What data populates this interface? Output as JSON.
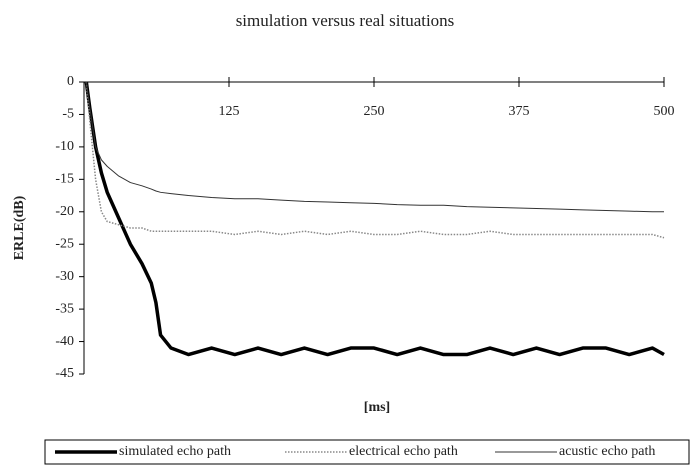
{
  "chart_data": {
    "type": "line",
    "title": "simulation versus real situations",
    "xlabel": "[ms]",
    "ylabel": "ERLE(dB)",
    "x": [
      2,
      5,
      10,
      15,
      20,
      30,
      40,
      50,
      58,
      62,
      66,
      75,
      90,
      110,
      130,
      150,
      170,
      190,
      210,
      230,
      250,
      270,
      290,
      310,
      330,
      350,
      370,
      390,
      410,
      430,
      450,
      470,
      490,
      500
    ],
    "series": [
      {
        "name": "simulated echo path",
        "color": "#000000",
        "line_width": 3.5,
        "dash": "solid",
        "values": [
          0,
          -4,
          -10,
          -14,
          -17,
          -21,
          -25,
          -28,
          -31,
          -34,
          -39,
          -41,
          -42,
          -41,
          -42,
          -41,
          -42,
          -41,
          -42,
          -41,
          -41,
          -42,
          -41,
          -42,
          -42,
          -41,
          -42,
          -41,
          -42,
          -41,
          -41,
          -42,
          -41,
          -42
        ]
      },
      {
        "name": "electrical echo path",
        "color": "#888888",
        "line_width": 1.5,
        "dash": "dotted",
        "values": [
          0,
          -6,
          -15,
          -20,
          -21.5,
          -22,
          -22.5,
          -22.5,
          -23,
          -23,
          -23,
          -23,
          -23,
          -23,
          -23.5,
          -23,
          -23.5,
          -23,
          -23.5,
          -23,
          -23.5,
          -23.5,
          -23,
          -23.5,
          -23.5,
          -23,
          -23.5,
          -23.5,
          -23.5,
          -23.5,
          -23.5,
          -23.5,
          -23.5,
          -24
        ]
      },
      {
        "name": "acustic echo path",
        "color": "#333333",
        "line_width": 1,
        "dash": "solid",
        "values": [
          0,
          -4,
          -10,
          -12,
          -13,
          -14.5,
          -15.5,
          -16,
          -16.5,
          -16.8,
          -17,
          -17.2,
          -17.5,
          -17.8,
          -18,
          -18,
          -18.2,
          -18.4,
          -18.5,
          -18.6,
          -18.7,
          -18.9,
          -19,
          -19,
          -19.2,
          -19.3,
          -19.4,
          -19.5,
          -19.6,
          -19.7,
          -19.8,
          -19.9,
          -20,
          -20
        ]
      }
    ],
    "xlim": [
      0,
      500
    ],
    "xticks": [
      125,
      250,
      375,
      500
    ],
    "ylim": [
      -45,
      0
    ],
    "yticks": [
      0,
      -5,
      -10,
      -15,
      -20,
      -25,
      -30,
      -35,
      -40,
      -45
    ],
    "legend": "bottom"
  }
}
